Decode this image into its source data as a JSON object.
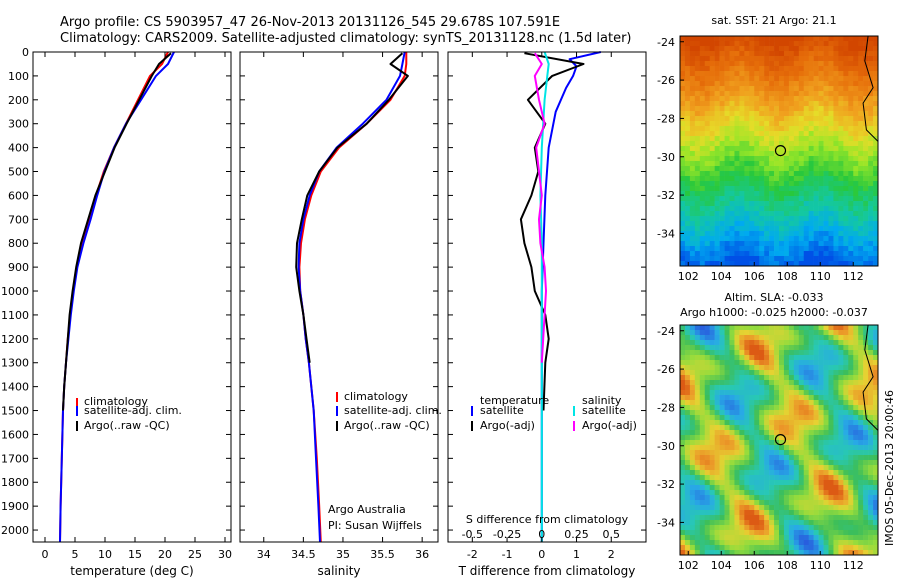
{
  "header": {
    "line1": "Argo profile: CS 5903957_47 26-Nov-2013 20131126_545 29.678S 107.591E",
    "line2": "Climatology: CARS2009. Satellite-adjusted climatology: synTS_20131128.nc (1.5d later)"
  },
  "side_label": "IMOS 05-Dec-2013 20:00:46",
  "chart_data": [
    {
      "type": "line",
      "xlabel": "temperature (deg C)",
      "xlim": [
        -2,
        31
      ],
      "ylim": [
        2050,
        0
      ],
      "xticks": [
        0,
        5,
        10,
        15,
        20,
        25,
        30
      ],
      "yticks": [
        0,
        100,
        200,
        300,
        400,
        500,
        600,
        700,
        800,
        900,
        1000,
        1100,
        1200,
        1300,
        1400,
        1500,
        1600,
        1700,
        1800,
        1900,
        2000
      ],
      "legend": [
        "climatology",
        "satellite-adj. clim.",
        "Argo(..raw -QC)"
      ],
      "series": [
        {
          "name": "climatology",
          "color": "#ff0000",
          "x": [
            20.5,
            19.5,
            17.5,
            15.5,
            13.5,
            11.5,
            9.8,
            8.5,
            7.4,
            6.2,
            5.3,
            4.7,
            4.2,
            3.8,
            3.5,
            3.2,
            3.0,
            2.8,
            2.6,
            2.5
          ],
          "y": [
            0,
            50,
            100,
            200,
            300,
            400,
            500,
            600,
            700,
            800,
            900,
            1000,
            1100,
            1200,
            1300,
            1400,
            1500,
            1700,
            1900,
            2050
          ]
        },
        {
          "name": "satellite-adj. clim.",
          "color": "#0000ff",
          "x": [
            21.5,
            20.5,
            18.5,
            16.0,
            13.5,
            11.5,
            9.9,
            8.7,
            7.6,
            6.4,
            5.4,
            4.8,
            4.3,
            3.9,
            3.5,
            3.2,
            3.0,
            2.8,
            2.6,
            2.5
          ],
          "y": [
            0,
            50,
            100,
            200,
            300,
            400,
            500,
            600,
            700,
            800,
            900,
            1000,
            1100,
            1200,
            1300,
            1400,
            1500,
            1700,
            1900,
            2050
          ]
        },
        {
          "name": "Argo(..raw -QC)",
          "color": "#000000",
          "x": [
            21.0,
            19.0,
            17.8,
            15.7,
            13.6,
            11.6,
            10.0,
            8.4,
            7.2,
            6.0,
            5.2,
            4.6,
            4.1,
            3.8,
            3.5,
            3.2,
            3.0
          ],
          "y": [
            5,
            50,
            100,
            200,
            300,
            400,
            500,
            600,
            700,
            800,
            900,
            1000,
            1100,
            1200,
            1300,
            1400,
            1500
          ]
        }
      ]
    },
    {
      "type": "line",
      "xlabel": "salinity",
      "xlim": [
        33.7,
        36.2
      ],
      "ylim": [
        2050,
        0
      ],
      "xticks": [
        34,
        34.5,
        35,
        35.5,
        36
      ],
      "legend": [
        "climatology",
        "satellite-adj. clim.",
        "Argo(..raw -QC)"
      ],
      "annotation": [
        "Argo Australia",
        "PI: Susan Wijffels"
      ],
      "series": [
        {
          "name": "climatology",
          "color": "#ff0000",
          "x": [
            35.8,
            35.8,
            35.78,
            35.6,
            35.3,
            34.95,
            34.72,
            34.6,
            34.52,
            34.47,
            34.45,
            34.46,
            34.5,
            34.53,
            34.57,
            34.6,
            34.63,
            34.67,
            34.7,
            34.72
          ],
          "y": [
            0,
            50,
            100,
            200,
            300,
            400,
            500,
            600,
            700,
            800,
            900,
            1000,
            1100,
            1200,
            1300,
            1400,
            1500,
            1700,
            1900,
            2050
          ]
        },
        {
          "name": "satellite-adj. clim.",
          "color": "#0000ff",
          "x": [
            35.78,
            35.75,
            35.72,
            35.55,
            35.25,
            34.92,
            34.7,
            34.58,
            34.5,
            34.45,
            34.44,
            34.46,
            34.5,
            34.53,
            34.57,
            34.6,
            34.63,
            34.66,
            34.69,
            34.71
          ],
          "y": [
            0,
            50,
            100,
            200,
            300,
            400,
            500,
            600,
            700,
            800,
            900,
            1000,
            1100,
            1200,
            1300,
            1400,
            1500,
            1700,
            1900,
            2050
          ]
        },
        {
          "name": "Argo(..raw -QC)",
          "color": "#000000",
          "x": [
            35.75,
            35.6,
            35.82,
            35.58,
            35.3,
            34.93,
            34.7,
            34.55,
            34.48,
            34.42,
            34.41,
            34.45,
            34.5,
            34.54,
            34.58
          ],
          "y": [
            5,
            50,
            100,
            200,
            300,
            400,
            500,
            600,
            700,
            800,
            900,
            1000,
            1100,
            1200,
            1300
          ]
        }
      ]
    },
    {
      "type": "line",
      "xlabel": "T difference from climatology",
      "xlabel_top": "S difference from climatology",
      "xlim": [
        -2.7,
        3.0
      ],
      "ylim": [
        2050,
        0
      ],
      "xticks": [
        -2,
        -1,
        0,
        1,
        2
      ],
      "sticks": [
        {
          "value": -0.5,
          "label": "-0.5"
        },
        {
          "value": -0.25,
          "label": "-0.25"
        },
        {
          "value": 0,
          "label": "0"
        },
        {
          "value": 0.25,
          "label": "0.25"
        },
        {
          "value": 0.5,
          "label": "0.5"
        }
      ],
      "legend_t_title": "temperature",
      "legend_s_title": "salinity",
      "legend": [
        "satellite",
        "Argo(-adj)",
        "satellite",
        "Argo(-adj)"
      ],
      "series": [
        {
          "name": "satellite",
          "color": "#0000ff",
          "x": [
            1.7,
            0.8,
            1.0,
            0.9,
            0.7,
            0.4,
            0.2,
            0.1,
            0.05,
            0.0,
            0.0,
            0.0,
            0.0,
            0.0,
            0.0
          ],
          "y": [
            0,
            30,
            60,
            100,
            150,
            250,
            400,
            600,
            800,
            1000,
            1200,
            1400,
            1600,
            1800,
            2050
          ]
        },
        {
          "name": "Argo(-adj)",
          "color": "#000000",
          "x": [
            -0.5,
            1.2,
            0.3,
            -0.4,
            0.1,
            -0.2,
            -0.1,
            -0.3,
            -0.6,
            -0.5,
            -0.3,
            -0.2,
            0.1,
            0.2,
            0.1,
            0.05
          ],
          "y": [
            5,
            50,
            100,
            200,
            300,
            400,
            500,
            600,
            700,
            800,
            900,
            1000,
            1100,
            1200,
            1300,
            1500
          ]
        },
        {
          "name": "satellite",
          "color": "#00e5e5",
          "x": [
            0.02,
            0.05,
            0.04,
            0.02,
            0.01,
            0.0,
            -0.01,
            0.0,
            0.0,
            0.0,
            0.0,
            0.0,
            0.0,
            0.0,
            0.0
          ],
          "y": [
            0,
            50,
            100,
            200,
            300,
            400,
            600,
            800,
            1000,
            1200,
            1400,
            1600,
            1800,
            1900,
            2050
          ]
        },
        {
          "name": "Argo(-adj)",
          "color": "#ff00ff",
          "x": [
            -0.05,
            0.0,
            -0.05,
            -0.02,
            0.02,
            -0.04,
            -0.02,
            0.0,
            -0.02,
            -0.01,
            0.02,
            0.03,
            0.02,
            0.01,
            0.0
          ],
          "y": [
            5,
            50,
            100,
            200,
            300,
            400,
            500,
            600,
            700,
            800,
            900,
            1000,
            1100,
            1200,
            1300
          ]
        }
      ]
    },
    {
      "type": "heatmap",
      "title": "sat. SST: 21 Argo: 21.1",
      "xlim": [
        101.5,
        113.5
      ],
      "ylim": [
        -35.7,
        -23.7
      ],
      "xticks": [
        102,
        104,
        106,
        108,
        110,
        112
      ],
      "yticks": [
        -24,
        -26,
        -28,
        -30,
        -32,
        -34
      ],
      "marker": [
        107.591,
        -29.678
      ]
    },
    {
      "type": "heatmap",
      "title": "Altim. SLA: -0.033",
      "subtitle": "Argo h1000: -0.025 h2000: -0.037",
      "xlim": [
        101.5,
        113.5
      ],
      "ylim": [
        -35.7,
        -23.7
      ],
      "xticks": [
        102,
        104,
        106,
        108,
        110,
        112
      ],
      "yticks": [
        -24,
        -26,
        -28,
        -30,
        -32,
        -34
      ],
      "marker": [
        107.591,
        -29.678
      ]
    }
  ]
}
